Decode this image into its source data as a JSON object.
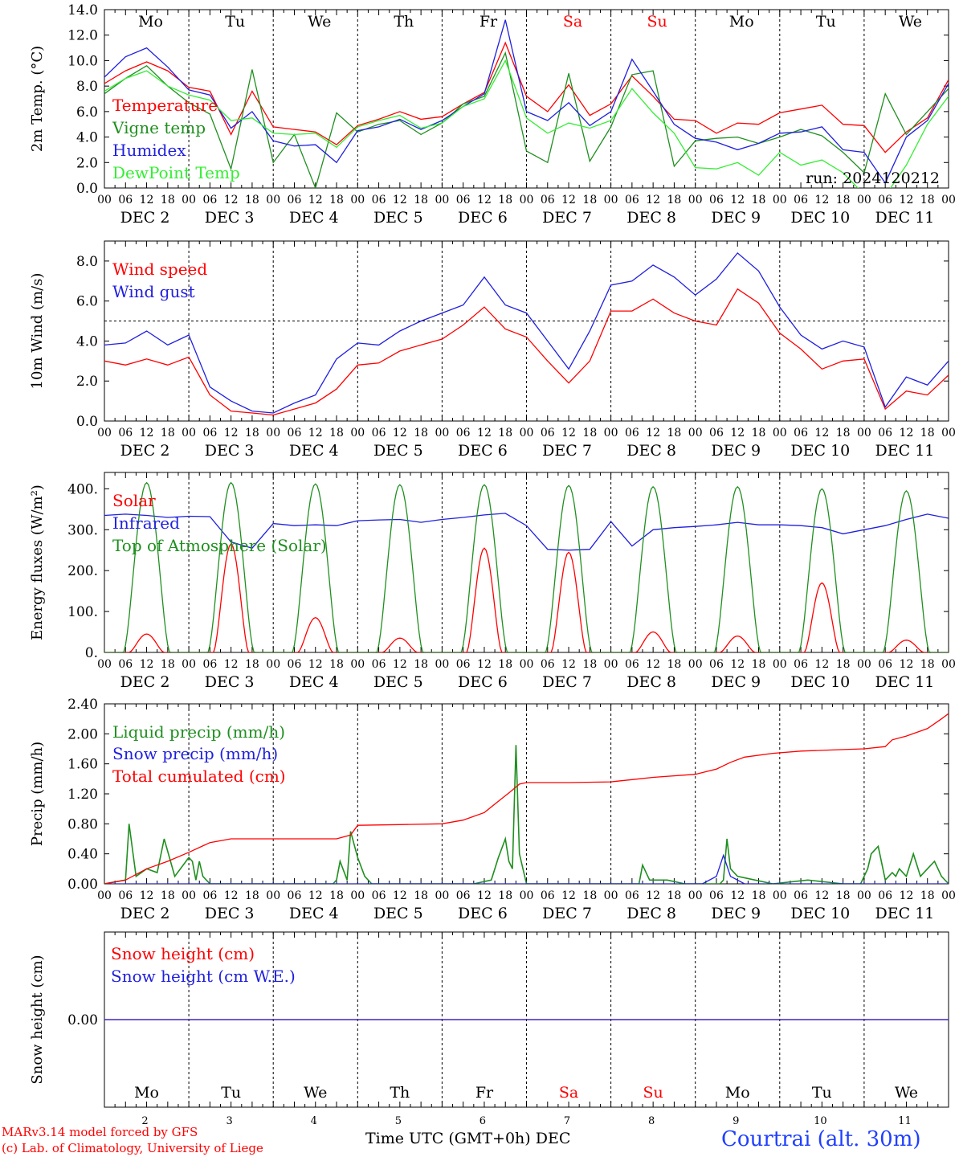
{
  "chart_data": [
    {
      "type": "line",
      "ylabel": "2m Temp. (°C)",
      "ylim": [
        0,
        14
      ],
      "yticks": [
        "0.0",
        "2.0",
        "4.0",
        "6.0",
        "8.0",
        "10.0",
        "12.0",
        "14.0"
      ],
      "ref_line": 0,
      "run_label": "run: 2024120212",
      "series": [
        {
          "name": "Temperature",
          "color": "#ff0000",
          "x": [
            0,
            6,
            12,
            18,
            24,
            30,
            36,
            42,
            48,
            54,
            60,
            66,
            72,
            78,
            84,
            90,
            96,
            102,
            108,
            114,
            120,
            126,
            132,
            138,
            144,
            150,
            156,
            162,
            168,
            174,
            180,
            186,
            192,
            198,
            204,
            210,
            216,
            222,
            228,
            234,
            240
          ],
          "y": [
            8.2,
            9.2,
            9.9,
            9.2,
            7.9,
            7.6,
            4.2,
            7.6,
            4.8,
            4.6,
            4.4,
            3.4,
            4.9,
            5.4,
            6.0,
            5.4,
            5.6,
            6.6,
            7.5,
            11.4,
            7.2,
            6.0,
            8.1,
            5.7,
            6.6,
            8.8,
            7.2,
            5.4,
            5.3,
            4.3,
            5.1,
            5.0,
            5.9,
            6.2,
            6.5,
            5.0,
            4.9,
            2.8,
            4.4,
            5.5,
            8.5
          ]
        },
        {
          "name": "Vigne temp",
          "color": "#1f8f1f",
          "x": [
            0,
            6,
            12,
            18,
            24,
            30,
            36,
            42,
            48,
            54,
            60,
            66,
            72,
            78,
            84,
            90,
            96,
            102,
            108,
            114,
            120,
            126,
            132,
            138,
            144,
            150,
            156,
            162,
            168,
            174,
            180,
            186,
            192,
            198,
            204,
            210,
            216,
            222,
            228,
            234,
            240
          ],
          "y": [
            7.4,
            8.6,
            9.6,
            8.0,
            6.7,
            5.8,
            1.5,
            9.3,
            2.0,
            4.2,
            0.0,
            5.9,
            4.4,
            5.0,
            5.3,
            4.2,
            5.1,
            6.6,
            7.2,
            10.6,
            2.9,
            2.0,
            9.0,
            2.1,
            4.8,
            8.9,
            9.2,
            1.7,
            3.7,
            3.9,
            4.0,
            3.5,
            4.0,
            4.6,
            4.1,
            2.8,
            1.2,
            7.4,
            4.2,
            6.0,
            7.8
          ]
        },
        {
          "name": "Humidex",
          "color": "#1f1fdf",
          "x": [
            0,
            6,
            12,
            18,
            24,
            30,
            36,
            42,
            48,
            54,
            60,
            66,
            72,
            78,
            84,
            90,
            96,
            102,
            108,
            114,
            120,
            126,
            132,
            138,
            144,
            150,
            156,
            162,
            168,
            174,
            180,
            186,
            192,
            198,
            204,
            210,
            216,
            222,
            228,
            234,
            240
          ],
          "y": [
            8.7,
            10.3,
            11.0,
            9.5,
            7.7,
            7.3,
            4.7,
            6.0,
            3.7,
            3.3,
            3.4,
            2.0,
            4.5,
            4.8,
            5.4,
            4.6,
            5.3,
            6.4,
            7.4,
            13.2,
            6.0,
            5.3,
            6.7,
            4.9,
            6.0,
            10.1,
            7.6,
            5.0,
            3.9,
            3.6,
            3.0,
            3.5,
            4.3,
            4.4,
            4.8,
            3.0,
            2.8,
            0.4,
            4.0,
            5.3,
            8.2
          ]
        },
        {
          "name": "DewPoint Temp",
          "color": "#33ee33",
          "x": [
            0,
            6,
            12,
            18,
            24,
            30,
            36,
            42,
            48,
            54,
            60,
            66,
            72,
            78,
            84,
            90,
            96,
            102,
            108,
            114,
            120,
            126,
            132,
            138,
            144,
            150,
            156,
            162,
            168,
            174,
            180,
            186,
            192,
            198,
            204,
            210,
            216,
            222,
            228,
            234,
            240
          ],
          "y": [
            7.6,
            8.6,
            9.2,
            8.0,
            7.3,
            6.9,
            5.3,
            5.5,
            4.3,
            4.2,
            4.3,
            3.2,
            4.8,
            5.3,
            5.7,
            4.7,
            5.1,
            6.4,
            7.0,
            10.0,
            5.5,
            4.3,
            5.1,
            4.7,
            5.3,
            7.8,
            5.9,
            4.3,
            1.6,
            1.5,
            2.0,
            1.0,
            2.8,
            1.8,
            2.2,
            1.2,
            -0.5,
            -0.6,
            1.8,
            5.0,
            7.2
          ]
        }
      ]
    },
    {
      "type": "line",
      "ylabel": "10m Wind (m/s)",
      "ylim": [
        0,
        9
      ],
      "yticks": [
        "0.0",
        "2.0",
        "4.0",
        "6.0",
        "8.0"
      ],
      "ref_line": 5,
      "series": [
        {
          "name": "Wind speed",
          "color": "#ff0000",
          "x": [
            0,
            6,
            12,
            18,
            24,
            30,
            36,
            42,
            48,
            54,
            60,
            66,
            72,
            78,
            84,
            90,
            96,
            102,
            108,
            114,
            120,
            126,
            132,
            138,
            144,
            150,
            156,
            162,
            168,
            174,
            180,
            186,
            192,
            198,
            204,
            210,
            216,
            222,
            228,
            234,
            240
          ],
          "y": [
            3.0,
            2.8,
            3.1,
            2.8,
            3.2,
            1.3,
            0.5,
            0.4,
            0.3,
            0.6,
            0.9,
            1.6,
            2.8,
            2.9,
            3.5,
            3.8,
            4.1,
            4.8,
            5.7,
            4.6,
            4.2,
            3.0,
            1.9,
            3.0,
            5.5,
            5.5,
            6.1,
            5.4,
            5.0,
            4.8,
            6.6,
            5.9,
            4.4,
            3.6,
            2.6,
            3.0,
            3.1,
            0.6,
            1.5,
            1.3,
            2.3
          ]
        },
        {
          "name": "Wind gust",
          "color": "#1f1fdf",
          "x": [
            0,
            6,
            12,
            18,
            24,
            30,
            36,
            42,
            48,
            54,
            60,
            66,
            72,
            78,
            84,
            90,
            96,
            102,
            108,
            114,
            120,
            126,
            132,
            138,
            144,
            150,
            156,
            162,
            168,
            174,
            180,
            186,
            192,
            198,
            204,
            210,
            216,
            222,
            228,
            234,
            240
          ],
          "y": [
            3.8,
            3.9,
            4.5,
            3.8,
            4.3,
            1.7,
            1.0,
            0.5,
            0.4,
            0.9,
            1.3,
            3.1,
            3.9,
            3.8,
            4.5,
            5.0,
            5.4,
            5.8,
            7.2,
            5.8,
            5.4,
            4.0,
            2.6,
            4.5,
            6.8,
            7.0,
            7.8,
            7.2,
            6.3,
            7.1,
            8.4,
            7.5,
            5.7,
            4.3,
            3.6,
            4.0,
            3.7,
            0.7,
            2.2,
            1.8,
            3.0
          ]
        }
      ]
    },
    {
      "type": "line",
      "ylabel": "Energy fluxes (W/m²)",
      "ylim": [
        0,
        440
      ],
      "yticks": [
        "0.",
        "100.",
        "200.",
        "300.",
        "400."
      ],
      "series": [
        {
          "name": "Solar",
          "color": "#ff0000",
          "peaks": [
            45,
            265,
            85,
            35,
            255,
            245,
            50,
            40,
            170,
            30
          ]
        },
        {
          "name": "Infrared",
          "color": "#1f1fdf",
          "x": [
            0,
            6,
            12,
            18,
            24,
            30,
            36,
            42,
            48,
            54,
            60,
            66,
            72,
            78,
            84,
            90,
            96,
            102,
            108,
            114,
            120,
            126,
            132,
            138,
            144,
            150,
            156,
            162,
            168,
            174,
            180,
            186,
            192,
            198,
            204,
            210,
            216,
            222,
            228,
            234,
            240
          ],
          "y": [
            335,
            338,
            335,
            330,
            333,
            332,
            270,
            255,
            315,
            310,
            312,
            310,
            322,
            324,
            325,
            318,
            325,
            330,
            336,
            340,
            310,
            252,
            250,
            252,
            320,
            260,
            300,
            305,
            308,
            312,
            318,
            312,
            312,
            310,
            305,
            290,
            300,
            310,
            325,
            338,
            328
          ]
        },
        {
          "name": "Top of Atmosphere (Solar)",
          "color": "#1f8f1f",
          "peaks": [
            415,
            415,
            412,
            410,
            410,
            408,
            405,
            405,
            400,
            395
          ]
        }
      ]
    },
    {
      "type": "line",
      "ylabel": "Precip (mm/h)",
      "ylim": [
        0,
        2.4
      ],
      "yticks": [
        "0.00",
        "0.40",
        "0.80",
        "1.20",
        "1.60",
        "2.00",
        "2.40"
      ],
      "series": [
        {
          "name": "Liquid precip (mm/h)",
          "color": "#1f8f1f",
          "x": [
            0,
            6,
            7,
            9,
            12,
            15,
            17,
            20,
            24,
            25,
            26,
            27,
            28,
            30,
            32,
            40,
            50,
            60,
            65,
            66,
            67,
            69,
            70,
            72,
            74,
            76,
            80,
            85,
            88,
            90,
            91,
            93,
            94,
            95,
            96,
            100,
            105,
            110,
            112,
            114,
            115,
            116,
            117,
            118,
            119,
            120,
            125,
            130,
            140,
            150,
            152,
            153,
            155,
            160,
            165,
            170,
            175,
            176,
            177,
            178,
            180,
            185,
            190,
            200,
            210,
            213,
            214,
            215,
            217,
            218,
            220,
            222,
            224,
            225,
            226,
            228,
            230,
            232,
            234,
            236,
            238,
            240
          ],
          "y": [
            0,
            0.05,
            0.8,
            0.1,
            0.2,
            0.15,
            0.6,
            0.1,
            0.35,
            0.3,
            0.05,
            0.3,
            0.1,
            0,
            0,
            0,
            0,
            0,
            0,
            0.05,
            0.3,
            0.05,
            0.7,
            0.35,
            0.1,
            0,
            0,
            0,
            0,
            0,
            0,
            0,
            0,
            0,
            0,
            0,
            0,
            0.05,
            0.35,
            0.6,
            0.3,
            0.2,
            1.85,
            0.4,
            0.2,
            0,
            0,
            0,
            0,
            0,
            0,
            0.25,
            0.05,
            0.05,
            0,
            0,
            0,
            0.05,
            0.6,
            0.2,
            0.1,
            0.05,
            0,
            0.05,
            0,
            0,
            0,
            0,
            0.2,
            0.4,
            0.5,
            0.05,
            0.15,
            0.1,
            0.2,
            0.1,
            0.4,
            0.1,
            0.2,
            0.3,
            0.1,
            0
          ]
        },
        {
          "name": "Snow precip (mm/h)",
          "color": "#1f1fdf",
          "x": [
            0,
            170,
            174,
            176,
            178,
            182,
            240
          ],
          "y": [
            0,
            0,
            0.1,
            0.38,
            0.1,
            0,
            0
          ]
        },
        {
          "name": "Total cumulated (cm)",
          "color": "#ff0000",
          "x": [
            0,
            6,
            12,
            18,
            24,
            30,
            36,
            48,
            60,
            66,
            70,
            72,
            84,
            96,
            102,
            108,
            112,
            116,
            118,
            120,
            126,
            132,
            144,
            150,
            156,
            168,
            174,
            178,
            182,
            190,
            198,
            210,
            216,
            222,
            224,
            228,
            234,
            238,
            240
          ],
          "y": [
            0,
            0.05,
            0.2,
            0.3,
            0.42,
            0.55,
            0.6,
            0.6,
            0.6,
            0.6,
            0.65,
            0.78,
            0.79,
            0.8,
            0.85,
            0.95,
            1.1,
            1.25,
            1.33,
            1.35,
            1.35,
            1.35,
            1.36,
            1.39,
            1.42,
            1.46,
            1.53,
            1.62,
            1.69,
            1.74,
            1.77,
            1.79,
            1.8,
            1.83,
            1.92,
            1.97,
            2.07,
            2.2,
            2.27
          ]
        }
      ]
    },
    {
      "type": "line",
      "ylabel": "Snow height (cm)",
      "ylim": [
        -1,
        1
      ],
      "yticks": [
        "0.00"
      ],
      "series": [
        {
          "name": "Snow height (cm)",
          "color": "#ff0000",
          "x": [
            0,
            240
          ],
          "y": [
            0,
            0
          ]
        },
        {
          "name": "Snow height (cm W.E.)",
          "color": "#1f1fdf",
          "x": [
            0,
            240
          ],
          "y": [
            0,
            0
          ]
        }
      ]
    }
  ],
  "x_axis": {
    "xlim_hours": [
      0,
      240
    ],
    "hour_ticks": [
      "00",
      "06",
      "12",
      "18"
    ],
    "date_labels": [
      "DEC  2",
      "DEC  3",
      "DEC  4",
      "DEC  5",
      "DEC  6",
      "DEC  7",
      "DEC  8",
      "DEC  9",
      "DEC 10",
      "DEC 11"
    ],
    "weekdays": [
      "Mo",
      "Tu",
      "We",
      "Th",
      "Fr",
      "Sa",
      "Su",
      "Mo",
      "Tu",
      "We"
    ],
    "weekday_colors": [
      "#000000",
      "#000000",
      "#000000",
      "#000000",
      "#000000",
      "#ff0000",
      "#ff0000",
      "#000000",
      "#000000",
      "#000000"
    ],
    "day_numbers": [
      "2",
      "3",
      "4",
      "5",
      "6",
      "7",
      "8",
      "9",
      "10",
      "11"
    ],
    "end_tick": "00"
  },
  "footer": {
    "model_line": "MARv3.14 model forced by GFS",
    "credit_line": "(c) Lab. of Climatology, University of Liege",
    "time_label": "Time UTC (GMT+0h) DEC",
    "station": "Courtrai (alt. 30m)"
  }
}
